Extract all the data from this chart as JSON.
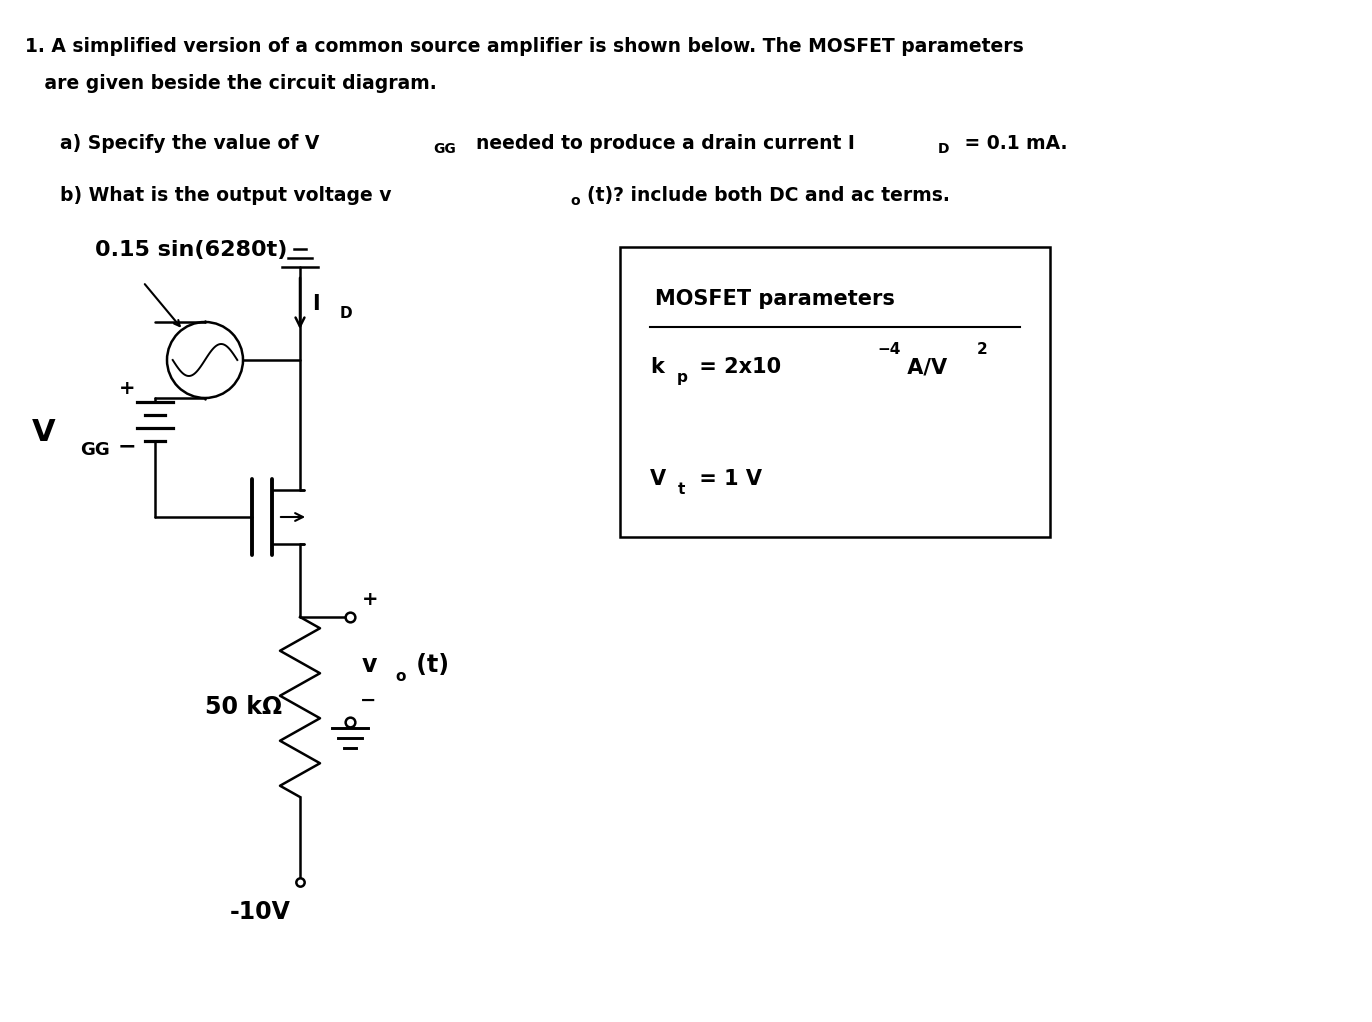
{
  "title_line1": "1. A simplified version of a common source amplifier is shown below. The MOSFET parameters",
  "title_line2": "   are given beside the circuit diagram.",
  "signal_label": "0.15 sin(6280t)",
  "resistor_label": "50 kΩ",
  "voltage_neg": "-10V",
  "mosfet_title": "MOSFET parameters",
  "bg_color": "#ffffff",
  "fg_color": "#000000"
}
